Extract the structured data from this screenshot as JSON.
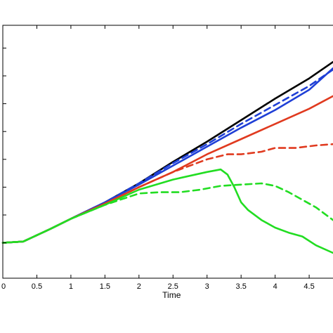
{
  "chart_data": {
    "type": "line",
    "title": "",
    "xlabel": "Time",
    "ylabel": "",
    "xlim": [
      0,
      4.85
    ],
    "ylim": [
      0,
      1
    ],
    "grid": false,
    "x_ticks": [
      "0",
      "0.5",
      "1",
      "1.5",
      "2",
      "2.5",
      "3",
      "3.5",
      "4",
      "4.5"
    ],
    "x_tick_values": [
      0,
      0.5,
      1,
      1.5,
      2,
      2.5,
      3,
      3.5,
      4,
      4.5
    ],
    "y_tick_values": [
      0.14,
      0.25,
      0.36,
      0.47,
      0.58,
      0.69,
      0.8,
      0.91
    ],
    "series": [
      {
        "color": "#000000",
        "dash": "solid",
        "x": [
          0,
          0.3,
          0.7,
          1.0,
          1.5,
          2.0,
          2.5,
          3.0,
          3.5,
          4.0,
          4.5,
          4.85
        ],
        "y": [
          0.14,
          0.145,
          0.195,
          0.235,
          0.3,
          0.375,
          0.46,
          0.54,
          0.625,
          0.71,
          0.79,
          0.855
        ]
      },
      {
        "color": "#1f3fd6",
        "dash": "dashed",
        "x": [
          0,
          0.3,
          0.7,
          1.0,
          1.5,
          2.0,
          2.5,
          3.0,
          3.5,
          4.0,
          4.5,
          4.85
        ],
        "y": [
          0.14,
          0.145,
          0.195,
          0.235,
          0.3,
          0.375,
          0.455,
          0.53,
          0.61,
          0.685,
          0.76,
          0.825
        ]
      },
      {
        "color": "#1f3fd6",
        "dash": "solid",
        "x": [
          0,
          0.3,
          0.7,
          1.0,
          1.5,
          2.0,
          2.5,
          3.0,
          3.5,
          4.0,
          4.5,
          4.85
        ],
        "y": [
          0.14,
          0.145,
          0.195,
          0.235,
          0.3,
          0.37,
          0.445,
          0.52,
          0.595,
          0.665,
          0.745,
          0.83
        ]
      },
      {
        "color": "#e03a1f",
        "dash": "solid",
        "x": [
          0,
          0.3,
          0.7,
          1.0,
          1.5,
          2.0,
          2.5,
          3.0,
          3.5,
          4.0,
          4.5,
          4.85
        ],
        "y": [
          0.14,
          0.145,
          0.195,
          0.235,
          0.295,
          0.36,
          0.42,
          0.49,
          0.55,
          0.61,
          0.67,
          0.72
        ]
      },
      {
        "color": "#e03a1f",
        "dash": "dashed",
        "x": [
          0,
          0.3,
          0.7,
          1.0,
          1.5,
          2.0,
          2.5,
          3.0,
          3.3,
          3.5,
          3.8,
          4.0,
          4.3,
          4.6,
          4.85
        ],
        "y": [
          0.14,
          0.145,
          0.195,
          0.235,
          0.295,
          0.36,
          0.42,
          0.47,
          0.49,
          0.49,
          0.5,
          0.515,
          0.515,
          0.525,
          0.53
        ]
      },
      {
        "color": "#22dd22",
        "dash": "solid",
        "x": [
          0,
          0.3,
          0.7,
          1.0,
          1.5,
          2.0,
          2.5,
          3.0,
          3.2,
          3.3,
          3.4,
          3.5,
          3.6,
          3.8,
          4.0,
          4.2,
          4.4,
          4.6,
          4.85
        ],
        "y": [
          0.14,
          0.145,
          0.195,
          0.235,
          0.29,
          0.35,
          0.39,
          0.42,
          0.43,
          0.41,
          0.36,
          0.3,
          0.27,
          0.23,
          0.2,
          0.18,
          0.165,
          0.13,
          0.1
        ]
      },
      {
        "color": "#22dd22",
        "dash": "dashed",
        "x": [
          0,
          0.3,
          0.7,
          1.0,
          1.5,
          2.0,
          2.3,
          2.6,
          2.9,
          3.2,
          3.5,
          3.8,
          4.0,
          4.2,
          4.4,
          4.6,
          4.85
        ],
        "y": [
          0.14,
          0.145,
          0.195,
          0.235,
          0.29,
          0.335,
          0.34,
          0.34,
          0.35,
          0.365,
          0.37,
          0.375,
          0.365,
          0.34,
          0.31,
          0.28,
          0.23
        ]
      }
    ]
  }
}
